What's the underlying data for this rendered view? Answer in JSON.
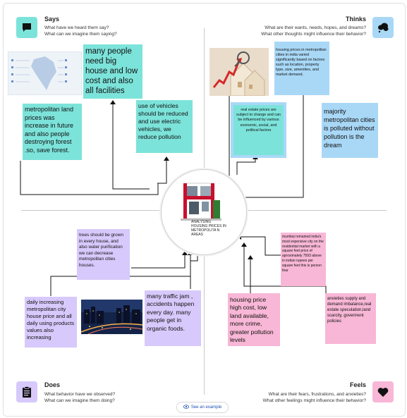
{
  "quadrants": {
    "says": {
      "title": "Says",
      "line1": "What have we heard them say?",
      "line2": "What can we imagine them saying?",
      "icon": "speech-bubble-icon",
      "color": "#7ce3da"
    },
    "thinks": {
      "title": "Thinks",
      "line1": "What are their wants, needs, hopes, and dreams?",
      "line2": "What other thoughts might influence their behavior?",
      "icon": "thought-cloud-icon",
      "color": "#a9d8f7"
    },
    "does": {
      "title": "Does",
      "line1": "What behavior have we observed?",
      "line2": "What can we imagine them doing?",
      "icon": "clipboard-icon",
      "color": "#d7c9fb"
    },
    "feels": {
      "title": "Feels",
      "line1": "What are their fears, frustrations, and anxieties?",
      "line2": "What other feelings might influence their behavior?",
      "icon": "heart-icon",
      "color": "#f8b7d6"
    }
  },
  "center": {
    "label": "ANALYSING HOUSING PRICES IN METROPOLITA N AREAS"
  },
  "notes": {
    "says_big_house": "many people need big house and low cost and also all facilities",
    "says_land_prices": "metropolitan land prices was increase in future and also people destroying forest .so, save forest.",
    "says_electric": "use of vehicles should be reduced and use electric vehicles, we reduce pollution",
    "thinks_housing_prices": "housing prices in metropolitan cities in india varied significantly based on factors such as location, property type, size, amenities, and market demand.",
    "thinks_real_estate": "real estate prices are subject to change and can be influenced by various economic, social, and political factors",
    "thinks_pollution": "majority metropolitan cities is polluted without pollution is the dream",
    "does_trees": "trees should be grown in every house, and also water purification we can decrease metropolitan cities houses.",
    "does_daily": "daily increasing metropolitan city house price and all daily using products values also increasing",
    "does_traffic": "many traffic jam , accidents happen every day. many people get in organic foods.",
    "feels_mumbai": "mumbai remained india's most expensive city on the residential market with a square feet price of aproximately 7593 above in indian rupees per square feet this is person fear",
    "feels_high_cost": "housing price high cost, low land available, more crime, greater pollution levels",
    "feels_anxieties": "anxieties supply and demand imbalance,real estate speculation,land scarcity, goverment policies"
  },
  "footer": {
    "see_example": "See an example"
  }
}
